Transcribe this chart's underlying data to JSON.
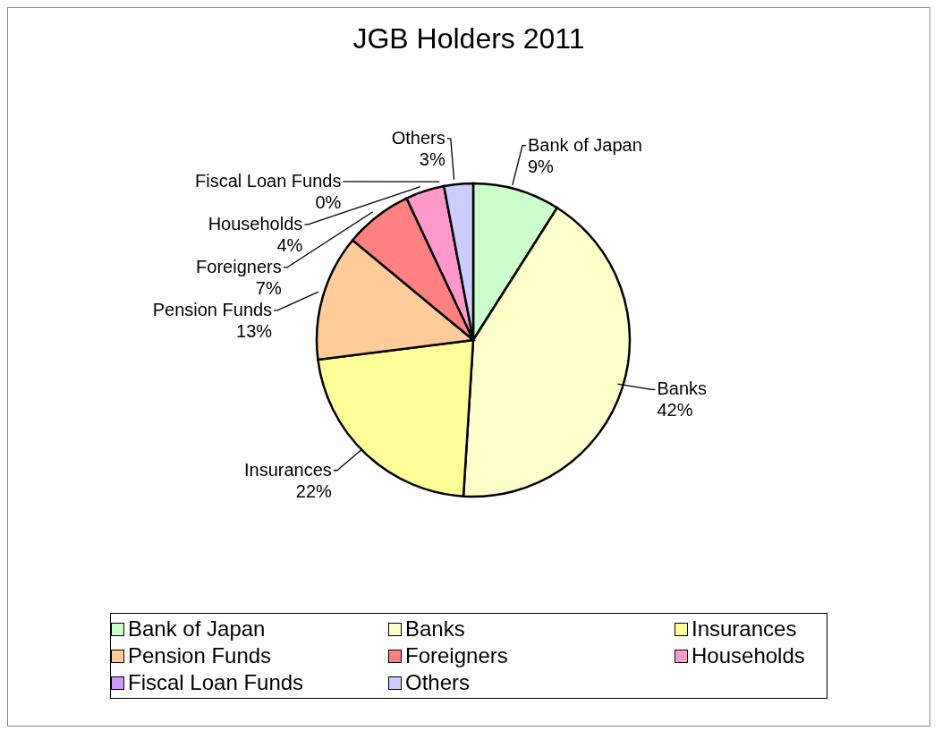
{
  "chart_data": {
    "type": "pie",
    "title": "JGB Holders 2011",
    "categories": [
      "Bank of Japan",
      "Banks",
      "Insurances",
      "Pension Funds",
      "Foreigners",
      "Households",
      "Fiscal Loan Funds",
      "Others"
    ],
    "values": [
      9,
      42,
      22,
      13,
      7,
      4,
      0,
      3
    ],
    "value_labels": [
      "9%",
      "42%",
      "22%",
      "13%",
      "7%",
      "4%",
      "0%",
      "3%"
    ],
    "colors": [
      "#ccffcc",
      "#ffffcc",
      "#ffff99",
      "#ffcc99",
      "#ff8080",
      "#ff99cc",
      "#cc99ff",
      "#ccccff"
    ],
    "legend": "bottom"
  }
}
